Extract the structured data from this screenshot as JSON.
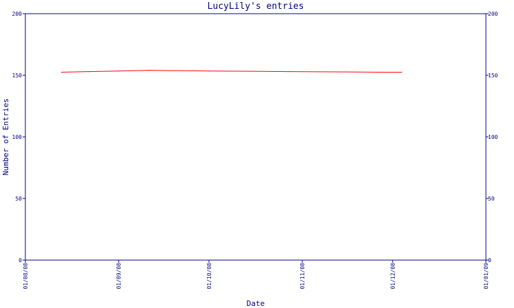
{
  "chart_data": {
    "type": "line",
    "title": "LucyLily's entries",
    "xlabel": "Date",
    "ylabel": "Number of Entries",
    "x_ticks": [
      "01/08/08",
      "01/09/08",
      "01/10/08",
      "01/11/08",
      "01/12/08",
      "01/01/09"
    ],
    "ylim": [
      0,
      200
    ],
    "y_ticks": [
      0,
      50,
      100,
      150,
      200
    ],
    "grid": false,
    "legend": "none",
    "series": [
      {
        "color": "#ff0000",
        "x": [
          "2008-08-13",
          "2008-08-22",
          "2008-09-01",
          "2008-09-11",
          "2008-10-01",
          "2008-10-28",
          "2008-11-27",
          "2008-12-04"
        ],
        "y": [
          152.5,
          153.0,
          153.5,
          154.0,
          153.5,
          153.0,
          152.5,
          152.5
        ]
      }
    ]
  },
  "colors": {
    "axis": "#000080",
    "series": "#ff0000",
    "background": "#ffffff"
  }
}
